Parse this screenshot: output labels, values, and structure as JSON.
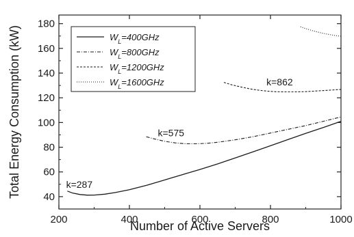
{
  "chart_data": {
    "type": "line",
    "xlabel": "Number of Active Servers",
    "ylabel": "Total Energy Consumption (kW)",
    "xlim": [
      200,
      1000
    ],
    "ylim": [
      30,
      187
    ],
    "xticks": [
      200,
      400,
      600,
      800,
      1000
    ],
    "yticks": [
      40,
      60,
      80,
      100,
      120,
      140,
      160,
      180
    ],
    "grid": false,
    "legend": {
      "placement": "top-left",
      "entries": [
        {
          "prefix": "W",
          "sub": "L",
          "suffix": "=400GHz",
          "style": "solid"
        },
        {
          "prefix": "W",
          "sub": "L",
          "suffix": "=800GHz",
          "style": "dashdot"
        },
        {
          "prefix": "W",
          "sub": "L",
          "suffix": "=1200GHz",
          "style": "dashed"
        },
        {
          "prefix": "W",
          "sub": "L",
          "suffix": "=1600GHz",
          "style": "dotted"
        }
      ]
    },
    "series": [
      {
        "x": [
          224,
          240,
          260,
          280,
          300,
          330,
          360,
          400,
          450,
          500,
          550,
          600,
          650,
          700,
          750,
          800,
          850,
          900,
          950,
          1000
        ],
        "y": [
          44.5,
          42.8,
          41.7,
          41.2,
          41.3,
          42.0,
          43.3,
          45.6,
          49.3,
          53.5,
          57.8,
          62.0,
          66.5,
          71.3,
          76.2,
          81.2,
          86.2,
          91.2,
          96.0,
          101.0
        ]
      },
      {
        "x": [
          448,
          470,
          500,
          530,
          560,
          590,
          620,
          650,
          700,
          750,
          800,
          850,
          900,
          950,
          1000
        ],
        "y": [
          88.5,
          86.8,
          84.8,
          83.5,
          82.8,
          82.8,
          83.2,
          84.0,
          86.0,
          88.5,
          91.5,
          94.5,
          97.5,
          101.0,
          104.5
        ]
      },
      {
        "x": [
          668,
          690,
          720,
          750,
          780,
          810,
          840,
          870,
          900,
          930,
          960,
          1000
        ],
        "y": [
          132.5,
          130.5,
          128.5,
          126.8,
          125.7,
          125.0,
          124.8,
          124.8,
          125.0,
          125.5,
          126.0,
          126.8
        ]
      },
      {
        "x": [
          885,
          900,
          920,
          940,
          960,
          980,
          1000
        ],
        "y": [
          177.5,
          176.0,
          174.3,
          172.8,
          171.6,
          170.6,
          169.8
        ]
      }
    ],
    "annotations": [
      {
        "text": "k=287",
        "x": 258,
        "y": 47
      },
      {
        "text": "k=575",
        "x": 518,
        "y": 89
      },
      {
        "text": "k=862",
        "x": 826,
        "y": 130
      }
    ]
  }
}
